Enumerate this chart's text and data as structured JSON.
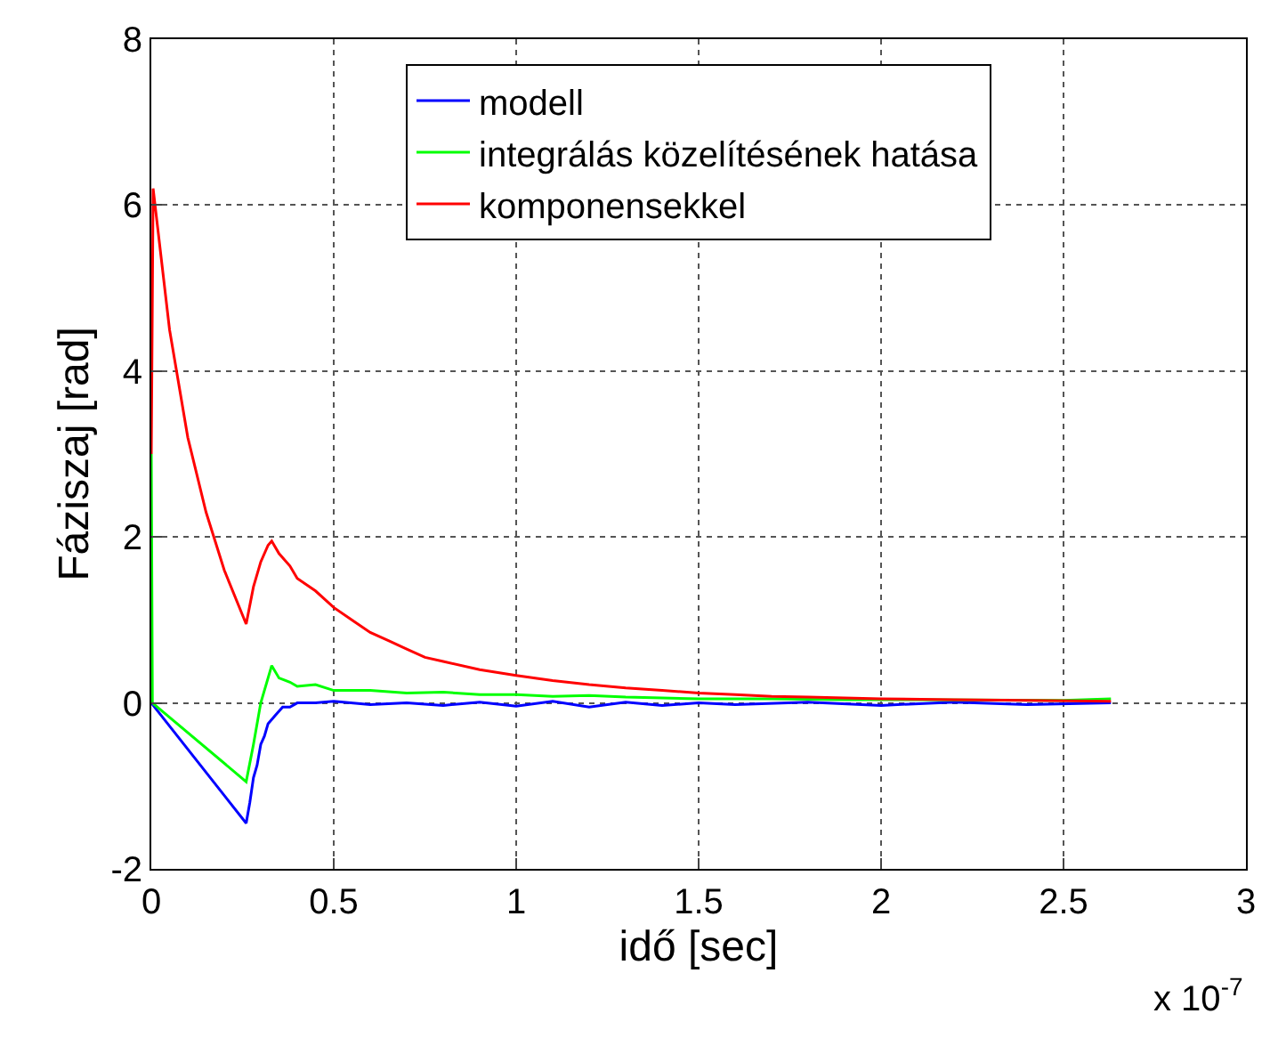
{
  "chart_data": {
    "type": "line",
    "xlabel": "idő [sec]",
    "ylabel": "Fáziszaj [rad]",
    "xlim": [
      0,
      3
    ],
    "xticks": [
      0,
      0.5,
      1,
      1.5,
      2,
      2.5,
      3
    ],
    "ylim": [
      -2,
      8
    ],
    "yticks": [
      -2,
      0,
      2,
      4,
      6,
      8
    ],
    "grid": true,
    "legend": "top",
    "line_style": "solid",
    "marker": "none",
    "annotations": [
      "x 10$^{-7}$"
    ],
    "series": [
      {
        "name": "modell",
        "color": "#0000ff",
        "x": [
          0,
          0.26,
          0.27,
          0.28,
          0.29,
          0.3,
          0.31,
          0.32,
          0.34,
          0.36,
          0.38,
          0.4,
          0.45,
          0.5,
          0.6,
          0.7,
          0.8,
          0.9,
          1.0,
          1.1,
          1.2,
          1.3,
          1.4,
          1.5,
          1.6,
          1.8,
          2.0,
          2.2,
          2.4,
          2.63
        ],
        "values": [
          0,
          -1.45,
          -1.2,
          -0.9,
          -0.75,
          -0.5,
          -0.4,
          -0.25,
          -0.15,
          -0.05,
          -0.05,
          0,
          0,
          0.02,
          -0.02,
          0,
          -0.03,
          0.01,
          -0.04,
          0.02,
          -0.05,
          0.01,
          -0.03,
          0,
          -0.02,
          0.01,
          -0.03,
          0.01,
          -0.02,
          0
        ]
      },
      {
        "name": "integrálás közelítésének hatása",
        "color": "#00ff00",
        "x": [
          0,
          0,
          0.003,
          0.26,
          0.28,
          0.3,
          0.32,
          0.33,
          0.35,
          0.38,
          0.4,
          0.45,
          0.5,
          0.6,
          0.7,
          0.8,
          0.9,
          1.0,
          1.1,
          1.2,
          1.3,
          1.4,
          1.5,
          1.7,
          1.9,
          2.1,
          2.3,
          2.5,
          2.63
        ],
        "values": [
          0,
          3,
          0,
          -0.95,
          -0.5,
          0,
          0.3,
          0.45,
          0.3,
          0.25,
          0.2,
          0.22,
          0.15,
          0.15,
          0.12,
          0.13,
          0.1,
          0.1,
          0.08,
          0.09,
          0.07,
          0.06,
          0.05,
          0.05,
          0.04,
          0.04,
          null,
          0.03,
          0.05
        ]
      },
      {
        "name": "komponensekkel",
        "color": "#ff0000",
        "x": [
          0,
          0.005,
          0.05,
          0.1,
          0.15,
          0.2,
          0.26,
          0.28,
          0.3,
          0.32,
          0.33,
          0.35,
          0.38,
          0.4,
          0.45,
          0.5,
          0.55,
          0.6,
          0.65,
          0.7,
          0.75,
          0.8,
          0.9,
          1.0,
          1.1,
          1.2,
          1.3,
          1.4,
          1.5,
          1.6,
          1.7,
          1.8,
          2.0,
          2.2,
          2.4,
          2.63
        ],
        "values": [
          3,
          6.2,
          4.5,
          3.2,
          2.3,
          1.6,
          0.95,
          1.4,
          1.7,
          1.9,
          1.95,
          1.8,
          1.65,
          1.5,
          1.35,
          1.15,
          1.0,
          0.85,
          0.75,
          0.65,
          0.55,
          0.5,
          0.4,
          0.33,
          0.27,
          0.22,
          0.18,
          0.15,
          0.12,
          0.1,
          0.08,
          0.07,
          0.05,
          0.04,
          0.03,
          0.02
        ]
      }
    ]
  }
}
